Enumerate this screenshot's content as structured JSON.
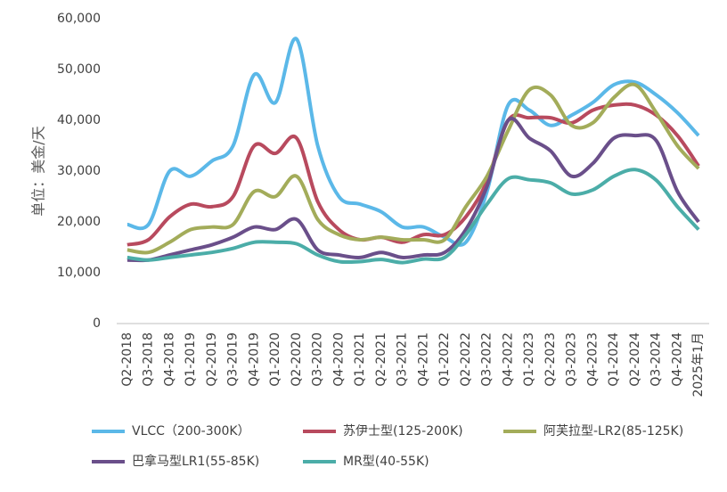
{
  "chart_data": {
    "type": "line",
    "y_label": "单位：美金/天",
    "categories": [
      "Q2-2018",
      "Q3-2018",
      "Q4-2018",
      "Q1-2019",
      "Q2-2019",
      "Q3-2019",
      "Q4-2019",
      "Q1-2020",
      "Q2-2020",
      "Q3-2020",
      "Q4-2020",
      "Q1-2021",
      "Q2-2021",
      "Q3-2021",
      "Q4-2021",
      "Q1-2022",
      "Q2-2022",
      "Q3-2022",
      "Q4-2022",
      "Q1-2023",
      "Q2-2023",
      "Q3-2023",
      "Q4-2023",
      "Q1-2024",
      "Q2-2024",
      "Q3-2024",
      "Q4-2024",
      "2025年1月"
    ],
    "series": [
      {
        "name": "VLCC（200-300K）",
        "color": "#5bb8e8",
        "values": [
          19500,
          19500,
          30000,
          29000,
          32000,
          35000,
          49000,
          43500,
          56000,
          35000,
          25000,
          23500,
          22000,
          19000,
          19000,
          17000,
          16000,
          26000,
          43000,
          42000,
          39000,
          41000,
          43500,
          47000,
          47500,
          45000,
          41500,
          37000
        ]
      },
      {
        "name": "苏伊士型(125-200K)",
        "color": "#b84a5e",
        "values": [
          15500,
          16500,
          21000,
          23500,
          23000,
          25000,
          35000,
          33500,
          36500,
          24000,
          18500,
          16500,
          17000,
          16000,
          17500,
          17500,
          21000,
          28000,
          40000,
          40500,
          40500,
          39500,
          42000,
          43000,
          43000,
          41000,
          37000,
          31000
        ]
      },
      {
        "name": "阿芙拉型-LR2(85-125K)",
        "color": "#a3ac5a",
        "values": [
          14500,
          14000,
          16000,
          18500,
          19000,
          19500,
          26000,
          25000,
          29000,
          20500,
          17500,
          16500,
          17000,
          16500,
          16500,
          16500,
          23000,
          29000,
          38000,
          46000,
          45000,
          39000,
          39500,
          44500,
          47000,
          41500,
          35000,
          30500
        ]
      },
      {
        "name": "巴拿马型LR1(55-85K)",
        "color": "#6a4f8a",
        "values": [
          12500,
          12500,
          13500,
          14500,
          15500,
          17000,
          19000,
          18500,
          20500,
          14500,
          13500,
          13000,
          14000,
          13000,
          13500,
          14000,
          18500,
          27000,
          40000,
          36500,
          34000,
          29000,
          31500,
          36500,
          37000,
          36000,
          26000,
          20000
        ]
      },
      {
        "name": "MR型(40-55K)",
        "color": "#4bada8",
        "values": [
          13000,
          12500,
          13000,
          13500,
          14000,
          14800,
          16000,
          16000,
          15700,
          13500,
          12200,
          12200,
          12600,
          12000,
          12700,
          13000,
          17500,
          23500,
          28500,
          28300,
          27700,
          25500,
          26300,
          29000,
          30300,
          28200,
          23000,
          18500
        ]
      }
    ],
    "ylim": [
      0,
      60000
    ],
    "yticks": [
      0,
      {
        "value": 10000,
        "label": "10,000"
      },
      {
        "value": 20000,
        "label": "20,000"
      },
      {
        "value": 30000,
        "label": "30,000"
      },
      {
        "value": 40000,
        "label": "40,000"
      },
      {
        "value": 50000,
        "label": "50,000"
      },
      {
        "value": 60000,
        "label": "60,000"
      }
    ],
    "legend": "bottom"
  }
}
